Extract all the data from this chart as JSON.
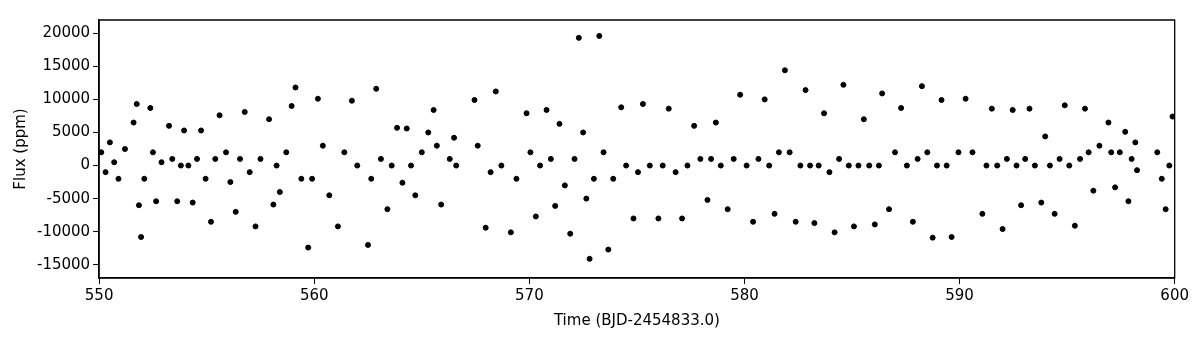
{
  "chart_data": {
    "type": "scatter",
    "xlabel": "Time (BJD-2454833.0)",
    "ylabel": "Flux (ppm)",
    "color": "#000000",
    "marker": "circle",
    "xlim": [
      550,
      600
    ],
    "xticks": [
      550,
      560,
      570,
      580,
      590,
      600
    ],
    "ylim": [
      -17000,
      22000
    ],
    "yticks": [
      -15000,
      -10000,
      -5000,
      0,
      5000,
      10000,
      15000,
      20000
    ],
    "x": [
      550.1,
      550.3,
      550.5,
      550.7,
      550.9,
      551.2,
      551.6,
      551.75,
      551.85,
      551.95,
      552.1,
      552.38,
      552.5,
      552.65,
      552.9,
      553.25,
      553.4,
      553.63,
      553.8,
      553.95,
      554.15,
      554.35,
      554.55,
      554.74,
      554.95,
      555.2,
      555.4,
      555.6,
      555.9,
      556.1,
      556.35,
      556.55,
      556.77,
      557.0,
      557.27,
      557.5,
      557.9,
      558.1,
      558.25,
      558.4,
      558.7,
      558.95,
      559.13,
      559.4,
      559.72,
      559.9,
      560.17,
      560.4,
      560.7,
      561.1,
      561.4,
      561.75,
      562.0,
      562.5,
      562.65,
      562.88,
      563.1,
      563.4,
      563.6,
      563.85,
      564.1,
      564.3,
      564.5,
      564.7,
      565.0,
      565.3,
      565.55,
      565.7,
      565.9,
      566.3,
      566.5,
      566.6,
      567.45,
      567.6,
      567.97,
      568.2,
      568.44,
      568.7,
      569.14,
      569.4,
      569.87,
      570.05,
      570.3,
      570.5,
      570.8,
      571.0,
      571.2,
      571.4,
      571.65,
      571.9,
      572.1,
      572.3,
      572.5,
      572.65,
      572.8,
      573.0,
      573.25,
      573.45,
      573.67,
      573.9,
      574.27,
      574.5,
      574.84,
      575.05,
      575.28,
      575.6,
      576.0,
      576.2,
      576.48,
      576.8,
      577.1,
      577.35,
      577.66,
      577.95,
      578.28,
      578.45,
      578.67,
      578.9,
      579.22,
      579.5,
      579.8,
      580.1,
      580.4,
      580.65,
      580.94,
      581.15,
      581.4,
      581.6,
      581.88,
      582.1,
      582.38,
      582.6,
      582.84,
      583.05,
      583.25,
      583.45,
      583.7,
      583.95,
      584.19,
      584.4,
      584.6,
      584.85,
      585.09,
      585.3,
      585.55,
      585.8,
      586.06,
      586.25,
      586.4,
      586.72,
      587.0,
      587.28,
      587.55,
      587.83,
      588.05,
      588.25,
      588.5,
      588.75,
      588.95,
      589.16,
      589.4,
      589.63,
      589.95,
      590.28,
      590.6,
      591.06,
      591.25,
      591.5,
      591.75,
      592.0,
      592.2,
      592.47,
      592.65,
      592.86,
      593.05,
      593.25,
      593.5,
      593.8,
      593.98,
      594.2,
      594.42,
      594.65,
      594.89,
      595.1,
      595.36,
      595.6,
      595.83,
      596.0,
      596.22,
      596.5,
      596.92,
      597.05,
      597.23,
      597.45,
      597.7,
      597.85,
      598.0,
      598.17,
      598.25,
      599.19,
      599.4,
      599.58,
      599.75,
      599.9
    ],
    "values": [
      2000,
      -1000,
      3500,
      500,
      -2000,
      2500,
      6500,
      9300,
      -6000,
      -10800,
      -2000,
      8700,
      2000,
      -5400,
      500,
      6000,
      1000,
      -5400,
      0,
      5300,
      0,
      -5600,
      1000,
      5300,
      -2000,
      -8500,
      1000,
      7600,
      2000,
      -2500,
      -7000,
      1000,
      8100,
      -1000,
      -9200,
      1000,
      7000,
      -5900,
      0,
      -4000,
      2000,
      9000,
      11800,
      -2000,
      -12400,
      -2000,
      10100,
      3000,
      -4500,
      -9200,
      2000,
      9800,
      0,
      -12000,
      -2000,
      11600,
      1000,
      -6600,
      0,
      5700,
      -2600,
      5600,
      0,
      -4500,
      2000,
      5000,
      8400,
      3000,
      -5900,
      1000,
      4200,
      0,
      9900,
      3000,
      -9400,
      -1000,
      11200,
      0,
      -10100,
      -2000,
      7900,
      2000,
      -7700,
      0,
      8400,
      1000,
      -6100,
      6300,
      -3000,
      -10300,
      1000,
      19300,
      5000,
      -5000,
      -14100,
      -2000,
      19600,
      2000,
      -12700,
      -2000,
      8800,
      0,
      -8000,
      -1000,
      9300,
      0,
      -8000,
      0,
      8600,
      -1000,
      -8000,
      0,
      6000,
      1000,
      -5200,
      1000,
      6500,
      0,
      -6600,
      1000,
      10700,
      0,
      -8500,
      1000,
      10000,
      0,
      -7300,
      2000,
      14400,
      2000,
      -8500,
      0,
      11400,
      0,
      -8700,
      0,
      7900,
      -1000,
      -10100,
      1000,
      12200,
      0,
      -9200,
      0,
      7000,
      0,
      -8900,
      0,
      10900,
      -6600,
      2000,
      8700,
      0,
      -8500,
      1000,
      12000,
      2000,
      -10900,
      0,
      9900,
      0,
      -10800,
      2000,
      10100,
      2000,
      -7300,
      0,
      8600,
      0,
      -9600,
      1000,
      8400,
      0,
      -6000,
      1000,
      8600,
      0,
      -5600,
      4400,
      0,
      -7300,
      1000,
      9100,
      0,
      -9100,
      1000,
      8600,
      2000,
      -3800,
      3000,
      6500,
      2000,
      -3300,
      2000,
      5100,
      -5400,
      1000,
      3500,
      -700,
      2000,
      -2000,
      -6600,
      0,
      7400
    ]
  }
}
